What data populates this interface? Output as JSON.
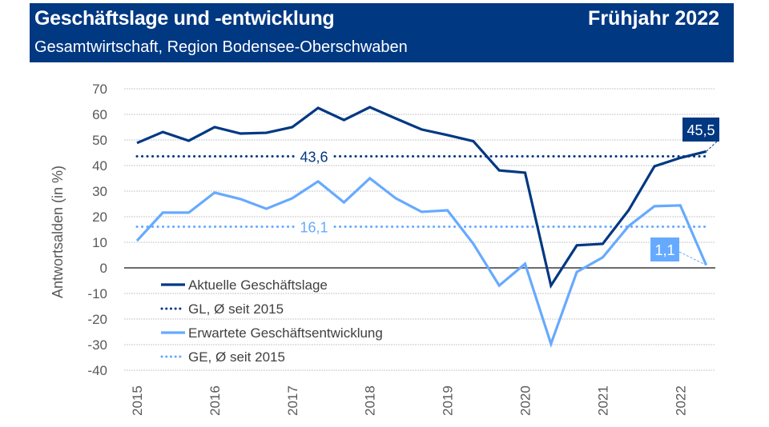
{
  "header": {
    "title": "Geschäftslage und -entwicklung",
    "period": "Frühjahr 2022",
    "subtitle": "Gesamtwirtschaft, Region Bodensee-Oberschwaben"
  },
  "colors": {
    "header_bg": "#003882",
    "dark_series": "#003882",
    "light_series": "#66aaff",
    "grid": "#c8c8c8",
    "zero_line": "#6b6b6b"
  },
  "chart_data": {
    "type": "line",
    "title": "Geschäftslage und -entwicklung",
    "subtitle": "Gesamtwirtschaft, Region Bodensee-Oberschwaben",
    "xlabel": "",
    "ylabel": "Antwortsalden (in %)",
    "ylim": [
      -40,
      70
    ],
    "yticks": [
      70,
      60,
      50,
      40,
      30,
      20,
      10,
      0,
      -10,
      -20,
      -30,
      -40
    ],
    "x_tick_labels": [
      "2015",
      "2016",
      "2017",
      "2018",
      "2019",
      "2020",
      "2021",
      "2022"
    ],
    "points_per_year": 3,
    "grid": true,
    "legend_position": "bottom-left",
    "series": [
      {
        "name": "Aktuelle Geschäftslage",
        "style": "solid",
        "color": "#003882",
        "values": [
          48.8,
          53.1,
          49.7,
          55.0,
          52.5,
          52.8,
          55.0,
          62.5,
          57.8,
          62.8,
          58.4,
          54.1,
          51.9,
          49.5,
          38.1,
          37.2,
          -6.9,
          8.8,
          9.4,
          22.5,
          39.7,
          43.0,
          45.5
        ],
        "end_label": "45,5"
      },
      {
        "name": "GL, Ø seit 2015",
        "style": "dotted",
        "color": "#003882",
        "value": 43.6,
        "label": "43,6"
      },
      {
        "name": "Erwartete Geschäftsentwicklung",
        "style": "solid",
        "color": "#66aaff",
        "values": [
          10.6,
          21.6,
          21.6,
          29.4,
          26.9,
          23.1,
          27.2,
          33.8,
          25.6,
          35.0,
          27.2,
          21.9,
          22.5,
          9.4,
          -6.9,
          1.6,
          -29.7,
          -1.6,
          4.1,
          16.3,
          24.1,
          24.4,
          1.1
        ],
        "end_label": "1,1"
      },
      {
        "name": "GE, Ø seit 2015",
        "style": "dotted",
        "color": "#66aaff",
        "value": 16.1,
        "label": "16,1"
      }
    ]
  }
}
